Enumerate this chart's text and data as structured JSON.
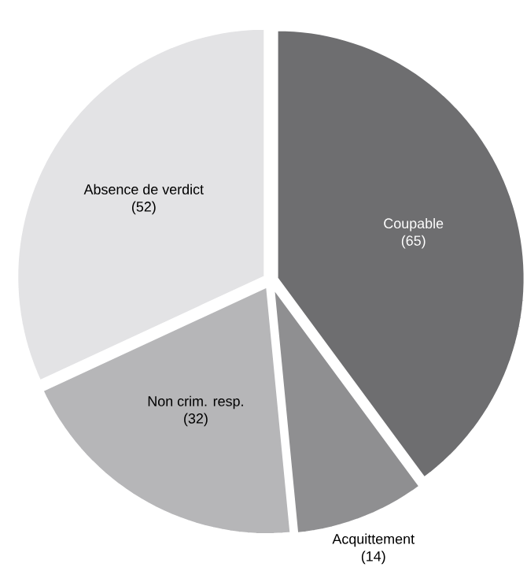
{
  "chart_data": {
    "type": "pie",
    "categories": [
      "Coupable",
      "Acquittement",
      "Non crim. resp.",
      "Absence de verdict"
    ],
    "values": [
      65,
      14,
      32,
      52
    ],
    "value_labels": [
      "(65)",
      "(14)",
      "(32)",
      "(52)"
    ],
    "colors": [
      "#6e6e70",
      "#8f8f91",
      "#b6b6b8",
      "#e3e3e5"
    ]
  }
}
